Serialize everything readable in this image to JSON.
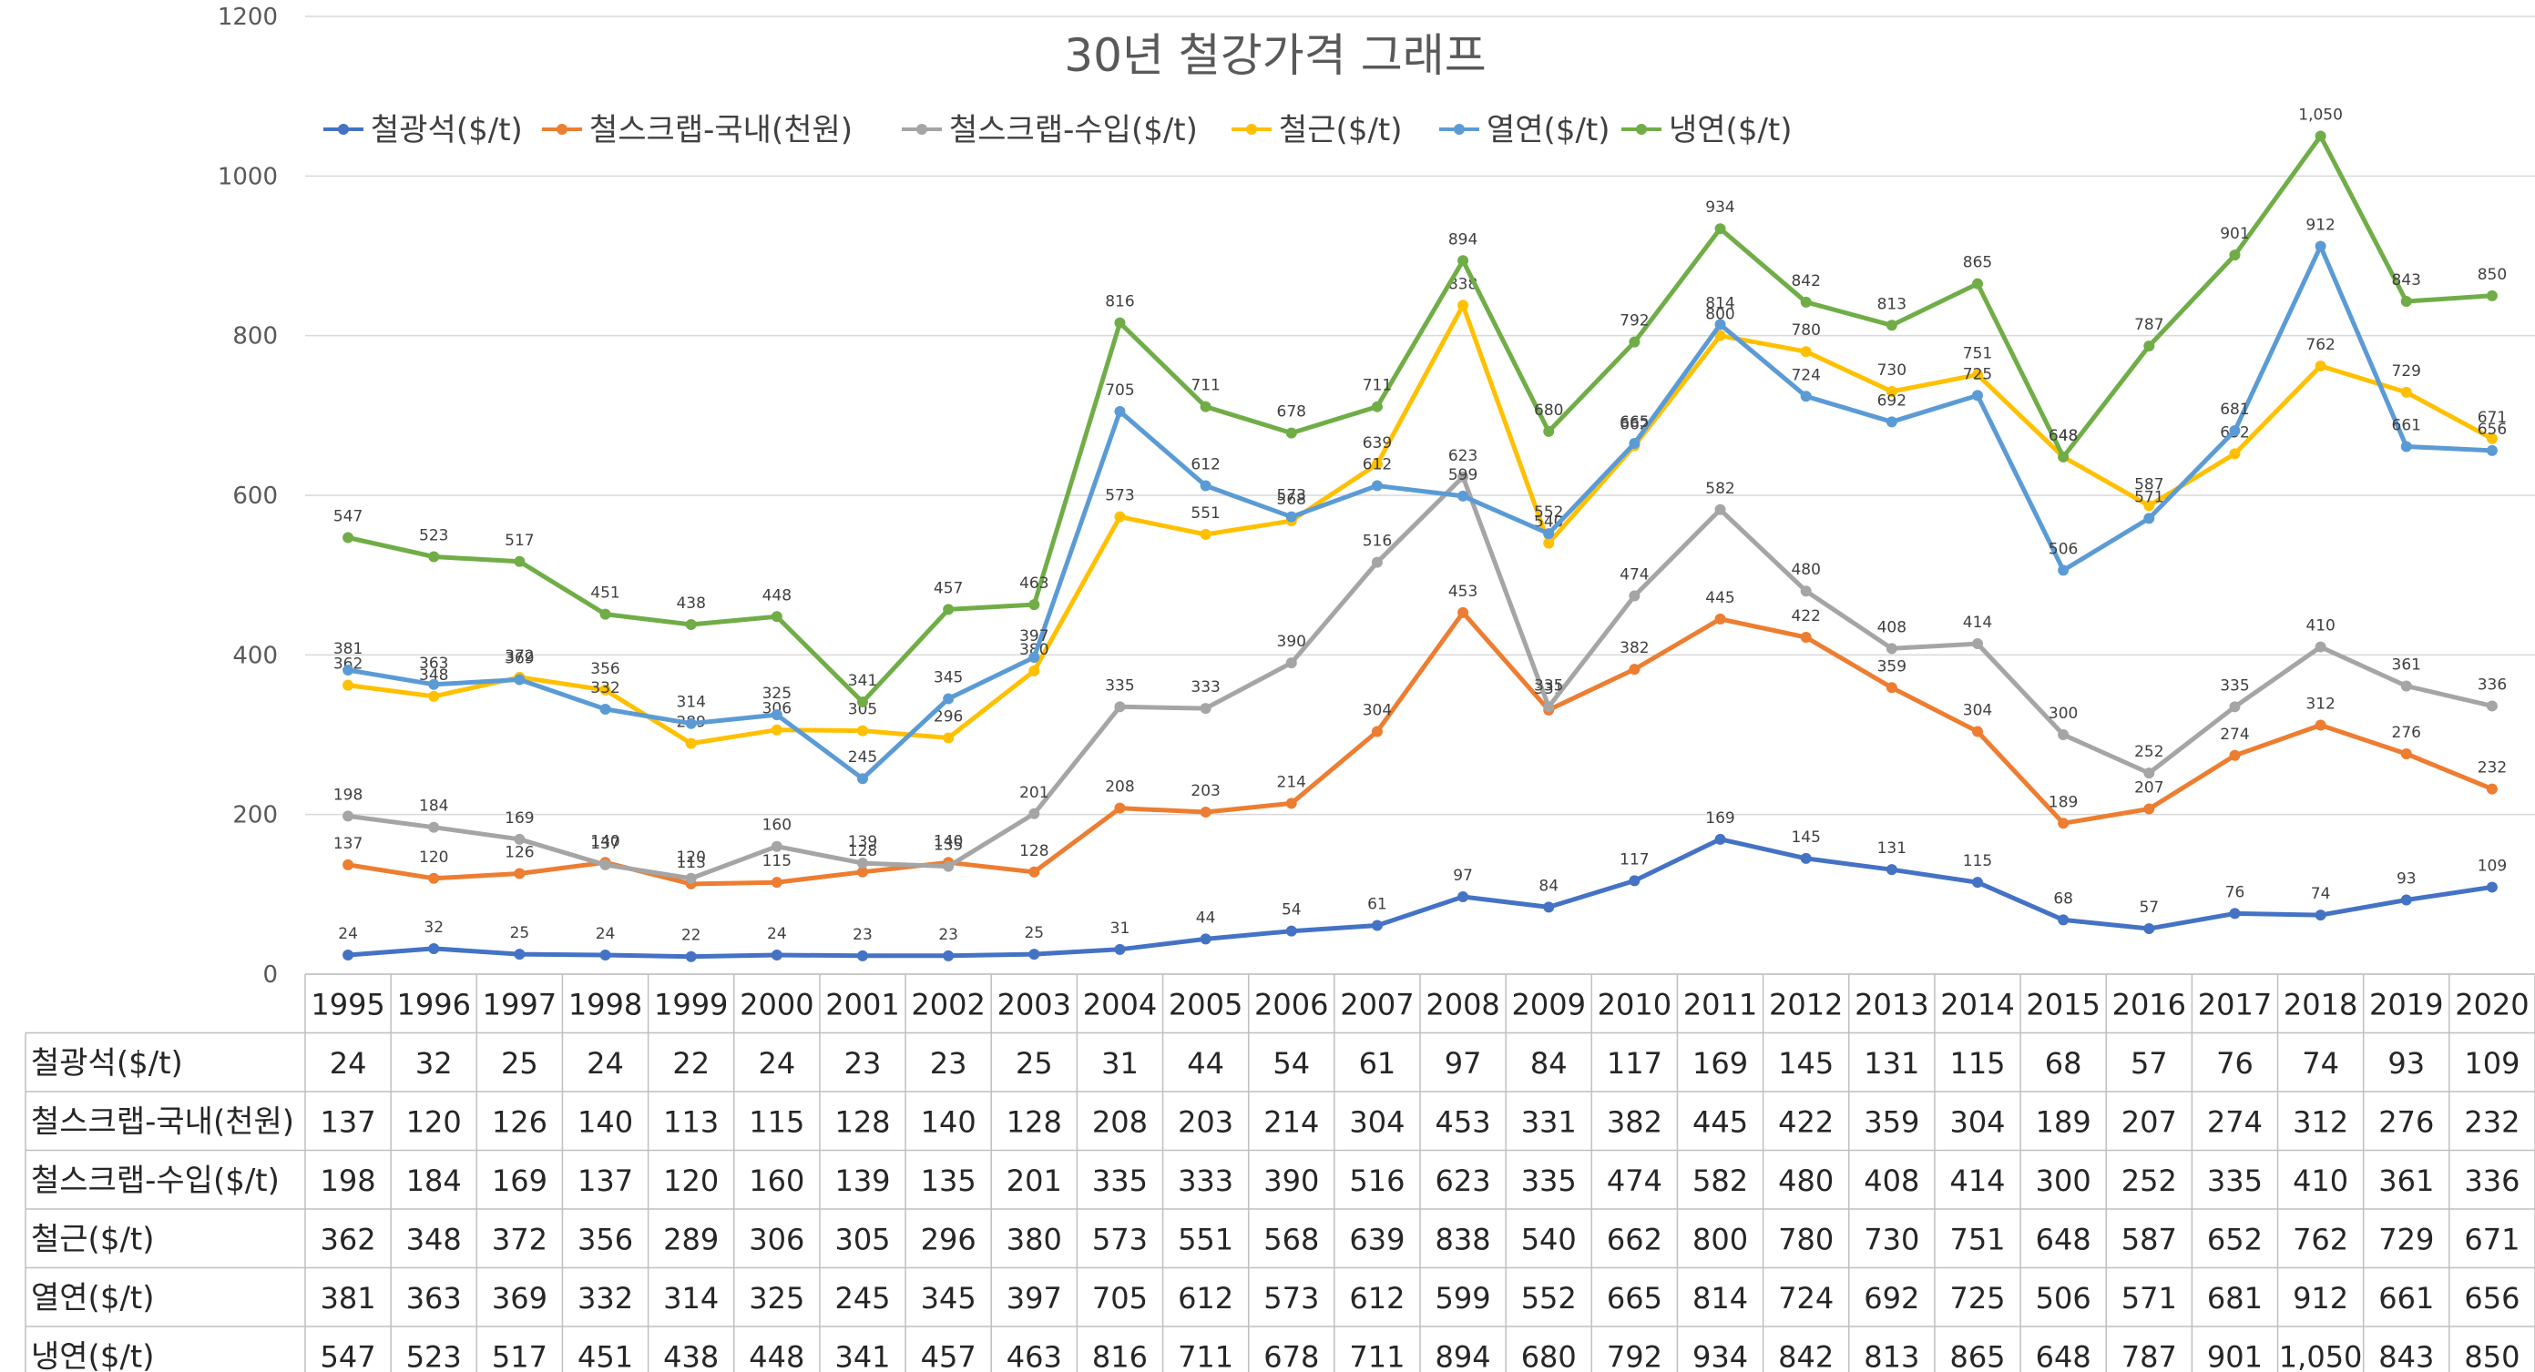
{
  "chart_data": {
    "type": "line",
    "title": "30년 철강가격 그래프",
    "categories": [
      "1995",
      "1996",
      "1997",
      "1998",
      "1999",
      "2000",
      "2001",
      "2002",
      "2003",
      "2004",
      "2005",
      "2006",
      "2007",
      "2008",
      "2009",
      "2010",
      "2011",
      "2012",
      "2013",
      "2014",
      "2015",
      "2016",
      "2017",
      "2018",
      "2019",
      "2020"
    ],
    "ylim": [
      0,
      1200
    ],
    "yticks": [
      0,
      200,
      400,
      600,
      800,
      1000,
      1200
    ],
    "legend_position": "top",
    "series": [
      {
        "name": "철광석($/t)",
        "color": "#4472C4",
        "values": [
          24,
          32,
          25,
          24,
          22,
          24,
          23,
          23,
          25,
          31,
          44,
          54,
          61,
          97,
          84,
          117,
          169,
          145,
          131,
          115,
          68,
          57,
          76,
          74,
          93,
          109
        ],
        "display": [
          "24",
          "32",
          "25",
          "24",
          "22",
          "24",
          "23",
          "23",
          "25",
          "31",
          "44",
          "54",
          "61",
          "97",
          "84",
          "117",
          "169",
          "145",
          "131",
          "115",
          "68",
          "57",
          "76",
          "74",
          "93",
          "109"
        ]
      },
      {
        "name": "철스크랩-국내(천원)",
        "color": "#ED7D31",
        "values": [
          137,
          120,
          126,
          140,
          113,
          115,
          128,
          140,
          128,
          208,
          203,
          214,
          304,
          453,
          331,
          382,
          445,
          422,
          359,
          304,
          189,
          207,
          274,
          312,
          276,
          232
        ],
        "display": [
          "137",
          "120",
          "126",
          "140",
          "113",
          "115",
          "128",
          "140",
          "128",
          "208",
          "203",
          "214",
          "304",
          "453",
          "331",
          "382",
          "445",
          "422",
          "359",
          "304",
          "189",
          "207",
          "274",
          "312",
          "276",
          "232"
        ]
      },
      {
        "name": "철스크랩-수입($/t)",
        "color": "#A5A5A5",
        "values": [
          198,
          184,
          169,
          137,
          120,
          160,
          139,
          135,
          201,
          335,
          333,
          390,
          516,
          623,
          335,
          474,
          582,
          480,
          408,
          414,
          300,
          252,
          335,
          410,
          361,
          336
        ],
        "display": [
          "198",
          "184",
          "169",
          "137",
          "120",
          "160",
          "139",
          "135",
          "201",
          "335",
          "333",
          "390",
          "516",
          "623",
          "335",
          "474",
          "582",
          "480",
          "408",
          "414",
          "300",
          "252",
          "335",
          "410",
          "361",
          "336"
        ]
      },
      {
        "name": "철근($/t)",
        "color": "#FFC000",
        "values": [
          362,
          348,
          372,
          356,
          289,
          306,
          305,
          296,
          380,
          573,
          551,
          568,
          639,
          838,
          540,
          662,
          800,
          780,
          730,
          751,
          648,
          587,
          652,
          762,
          729,
          671
        ],
        "display": [
          "362",
          "348",
          "372",
          "356",
          "289",
          "306",
          "305",
          "296",
          "380",
          "573",
          "551",
          "568",
          "639",
          "838",
          "540",
          "662",
          "800",
          "780",
          "730",
          "751",
          "648",
          "587",
          "652",
          "762",
          "729",
          "671"
        ]
      },
      {
        "name": "열연($/t)",
        "color": "#5B9BD5",
        "values": [
          381,
          363,
          369,
          332,
          314,
          325,
          245,
          345,
          397,
          705,
          612,
          573,
          612,
          599,
          552,
          665,
          814,
          724,
          692,
          725,
          506,
          571,
          681,
          912,
          661,
          656
        ],
        "display": [
          "381",
          "363",
          "369",
          "332",
          "314",
          "325",
          "245",
          "345",
          "397",
          "705",
          "612",
          "573",
          "612",
          "599",
          "552",
          "665",
          "814",
          "724",
          "692",
          "725",
          "506",
          "571",
          "681",
          "912",
          "661",
          "656"
        ]
      },
      {
        "name": "냉연($/t)",
        "color": "#70AD47",
        "values": [
          547,
          523,
          517,
          451,
          438,
          448,
          341,
          457,
          463,
          816,
          711,
          678,
          711,
          894,
          680,
          792,
          934,
          842,
          813,
          865,
          648,
          787,
          901,
          1050,
          843,
          850
        ],
        "display": [
          "547",
          "523",
          "517",
          "451",
          "438",
          "448",
          "341",
          "457",
          "463",
          "816",
          "711",
          "678",
          "711",
          "894",
          "680",
          "792",
          "934",
          "842",
          "813",
          "865",
          "648",
          "787",
          "901",
          "1,050",
          "843",
          "850"
        ]
      }
    ]
  }
}
